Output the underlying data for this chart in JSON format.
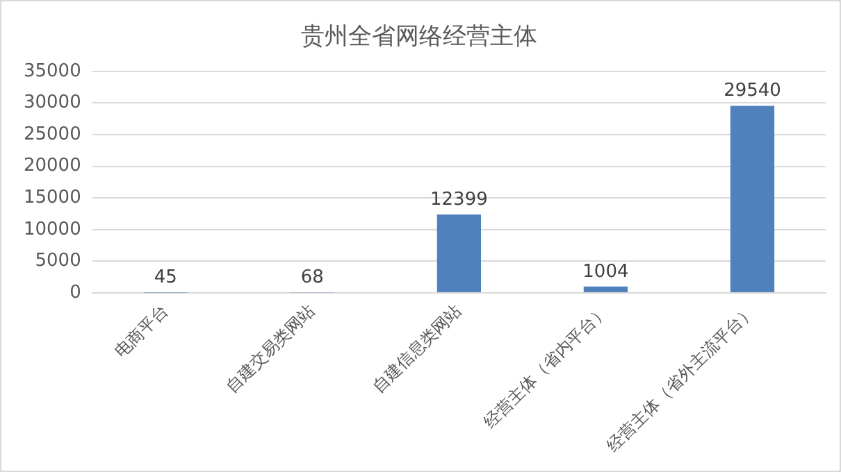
{
  "chart_data": {
    "type": "bar",
    "title": "贵州全省网络经营主体",
    "categories": [
      "电商平台",
      "自建交易类网站",
      "自建信息类网站",
      "经营主体（省内平台）",
      "经营主体（省外主流平台）"
    ],
    "values": [
      45,
      68,
      12399,
      1004,
      29540
    ],
    "color": "#4f81bd",
    "ylim": [
      0,
      35000
    ],
    "yticks": [
      0,
      5000,
      10000,
      15000,
      20000,
      25000,
      30000,
      35000
    ],
    "grid": "y",
    "data_labels": true,
    "legend": false
  }
}
